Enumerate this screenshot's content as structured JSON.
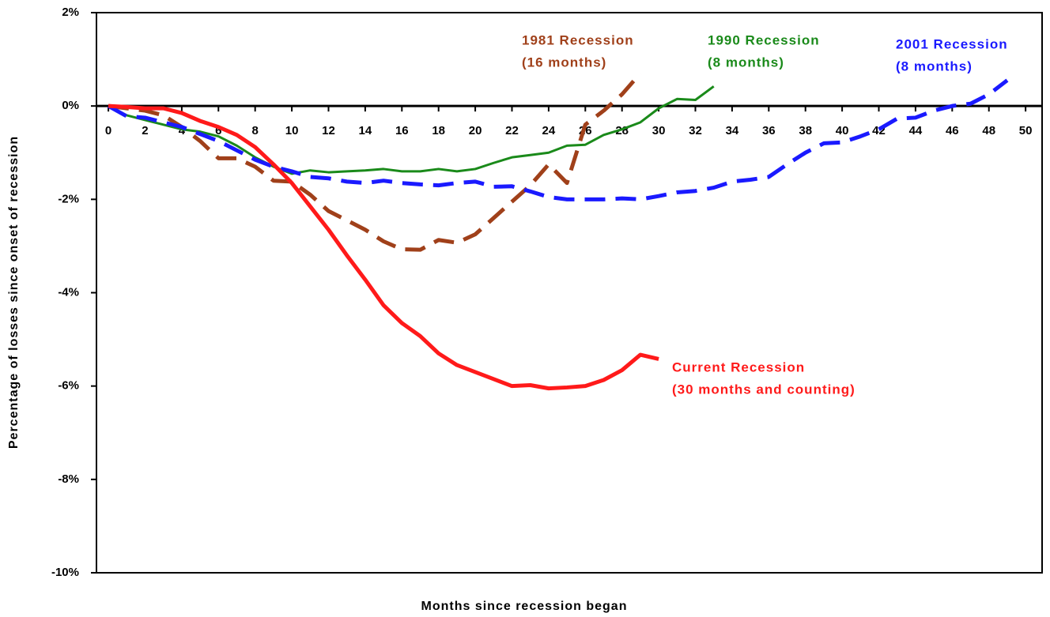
{
  "chart_data": {
    "type": "line",
    "x_label": "Months since recession began",
    "y_label": "Percentage of losses since onset of recession",
    "xlim": [
      -0.65,
      50.9
    ],
    "ylim": [
      -10,
      2
    ],
    "xticks": [
      0,
      2,
      4,
      6,
      8,
      10,
      12,
      14,
      16,
      18,
      20,
      22,
      24,
      26,
      28,
      30,
      32,
      34,
      36,
      38,
      40,
      42,
      44,
      46,
      48,
      50
    ],
    "yticks": [
      {
        "value": -10,
        "label": "-10%"
      },
      {
        "value": -8,
        "label": "-8%"
      },
      {
        "value": -6,
        "label": "-6%"
      },
      {
        "value": -4,
        "label": "-4%"
      },
      {
        "value": -2,
        "label": "-2%"
      },
      {
        "value": 0,
        "label": "0%"
      },
      {
        "value": 2,
        "label": "2%"
      }
    ],
    "series": [
      {
        "name": "1981 Recession",
        "note": "(16 months)",
        "color": "#a0401a",
        "dash": true,
        "x": [
          0,
          1,
          2,
          3,
          4,
          5,
          6,
          7,
          8,
          9,
          10,
          11,
          12,
          13,
          14,
          15,
          16,
          17,
          18,
          19,
          20,
          21,
          22,
          23,
          24,
          25,
          26,
          27,
          28,
          29
        ],
        "values": [
          0,
          -0.05,
          -0.1,
          -0.2,
          -0.45,
          -0.75,
          -1.12,
          -1.12,
          -1.3,
          -1.6,
          -1.62,
          -1.9,
          -2.25,
          -2.45,
          -2.65,
          -2.9,
          -3.07,
          -3.08,
          -2.87,
          -2.93,
          -2.75,
          -2.4,
          -2.05,
          -1.7,
          -1.25,
          -1.65,
          -0.4,
          -0.1,
          0.25,
          0.7
        ]
      },
      {
        "name": "1990 Recession",
        "note": "(8 months)",
        "color": "#1a8a1a",
        "dash": false,
        "x": [
          0,
          1,
          2,
          3,
          4,
          5,
          6,
          7,
          8,
          9,
          10,
          11,
          12,
          13,
          14,
          15,
          16,
          17,
          18,
          19,
          20,
          21,
          22,
          23,
          24,
          25,
          26,
          27,
          28,
          29,
          30,
          31,
          32,
          33
        ],
        "values": [
          0,
          -0.2,
          -0.3,
          -0.4,
          -0.5,
          -0.55,
          -0.65,
          -0.85,
          -1.1,
          -1.3,
          -1.45,
          -1.38,
          -1.42,
          -1.4,
          -1.38,
          -1.35,
          -1.4,
          -1.4,
          -1.35,
          -1.4,
          -1.35,
          -1.22,
          -1.1,
          -1.05,
          -1.0,
          -0.85,
          -0.83,
          -0.62,
          -0.5,
          -0.35,
          -0.05,
          0.15,
          0.13,
          0.42
        ]
      },
      {
        "name": "2001 Recession",
        "note": "(8 months)",
        "color": "#1a1aff",
        "dash": true,
        "x": [
          0,
          1,
          2,
          3,
          4,
          5,
          6,
          7,
          8,
          9,
          10,
          11,
          12,
          13,
          14,
          15,
          16,
          17,
          18,
          19,
          20,
          21,
          22,
          23,
          24,
          25,
          26,
          27,
          28,
          29,
          30,
          31,
          32,
          33,
          34,
          35,
          36,
          37,
          38,
          39,
          40,
          41,
          42,
          43,
          44,
          45,
          46,
          47,
          48,
          49
        ],
        "values": [
          0,
          -0.22,
          -0.25,
          -0.35,
          -0.45,
          -0.6,
          -0.75,
          -0.95,
          -1.15,
          -1.3,
          -1.4,
          -1.52,
          -1.55,
          -1.62,
          -1.65,
          -1.6,
          -1.65,
          -1.68,
          -1.7,
          -1.65,
          -1.62,
          -1.73,
          -1.72,
          -1.83,
          -1.95,
          -2.0,
          -2.0,
          -2.0,
          -1.98,
          -2.0,
          -1.93,
          -1.85,
          -1.82,
          -1.75,
          -1.62,
          -1.58,
          -1.52,
          -1.25,
          -1.0,
          -0.8,
          -0.78,
          -0.65,
          -0.5,
          -0.27,
          -0.25,
          -0.1,
          0.0,
          0.05,
          0.25,
          0.55
        ]
      },
      {
        "name": "Current Recession",
        "note": "(30 months and counting)",
        "color": "#ff1a1a",
        "dash": false,
        "x": [
          0,
          1,
          2,
          3,
          4,
          5,
          6,
          7,
          8,
          9,
          10,
          11,
          12,
          13,
          14,
          15,
          16,
          17,
          18,
          19,
          20,
          21,
          22,
          23,
          24,
          25,
          26,
          27,
          28,
          29,
          30
        ],
        "values": [
          0,
          -0.02,
          -0.05,
          -0.05,
          -0.15,
          -0.32,
          -0.45,
          -0.62,
          -0.88,
          -1.25,
          -1.65,
          -2.15,
          -2.65,
          -3.2,
          -3.72,
          -4.27,
          -4.65,
          -4.93,
          -5.3,
          -5.55,
          -5.7,
          -5.85,
          -6.0,
          -5.98,
          -6.05,
          -6.03,
          -6.0,
          -5.87,
          -5.66,
          -5.33,
          -5.42
        ]
      }
    ]
  }
}
